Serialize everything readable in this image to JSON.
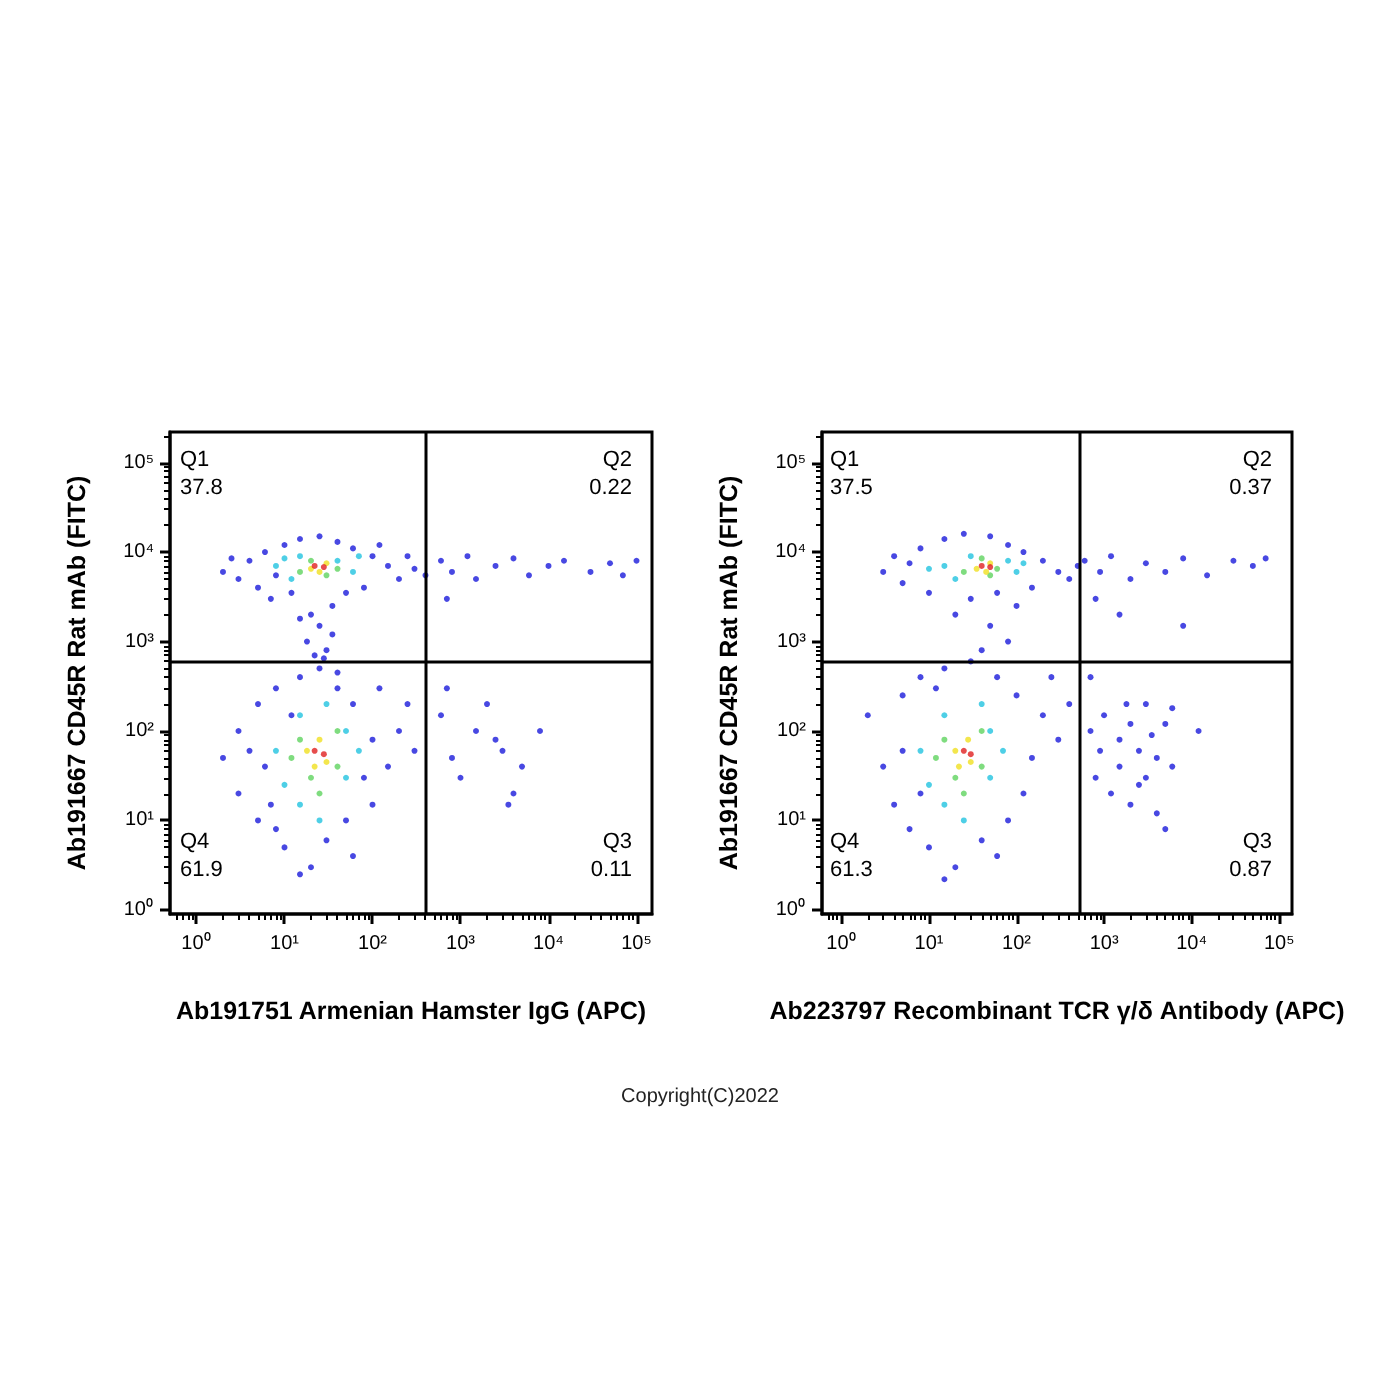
{
  "chart_data": [
    {
      "type": "scatter",
      "xlabel": "Ab191751 Armenian Hamster IgG (APC)",
      "ylabel": "Ab191667 CD45R Rat mAb (FITC)",
      "log": "xy",
      "marker": "circle",
      "xlim": [
        0.5,
        150000
      ],
      "ylim": [
        0.9,
        220000
      ],
      "xticks": [
        {
          "value": 1,
          "label": "10⁰"
        },
        {
          "value": 10,
          "label": "10¹"
        },
        {
          "value": 100,
          "label": "10²"
        },
        {
          "value": 1000,
          "label": "10³"
        },
        {
          "value": 10000,
          "label": "10⁴"
        },
        {
          "value": 100000,
          "label": "10⁵"
        }
      ],
      "yticks": [
        {
          "value": 1,
          "label": "10⁰"
        },
        {
          "value": 10,
          "label": "10¹"
        },
        {
          "value": 100,
          "label": "10²"
        },
        {
          "value": 1000,
          "label": "10³"
        },
        {
          "value": 10000,
          "label": "10⁴"
        },
        {
          "value": 100000,
          "label": "10⁵"
        }
      ],
      "ref_lines": [
        {
          "axis": "x",
          "value": 400,
          "color": "#000000"
        },
        {
          "axis": "y",
          "value": 600,
          "color": "#000000"
        }
      ],
      "annotations": [
        "Q1",
        "37.8",
        "Q2",
        "0.22",
        "Q4",
        "61.9",
        "Q3",
        "0.11"
      ],
      "series": [
        {
          "color": "#1a1adb",
          "x": [
            2,
            3,
            4,
            5,
            6,
            8,
            10,
            12,
            15,
            25,
            40,
            60,
            80,
            100,
            150,
            200,
            300,
            2.5,
            7,
            50,
            120,
            400,
            35,
            250,
            20,
            25,
            18,
            30,
            22,
            35,
            15,
            28,
            2,
            3,
            3,
            5,
            5,
            6,
            8,
            8,
            10,
            12,
            15,
            20,
            25,
            30,
            40,
            50,
            60,
            80,
            100,
            150,
            200,
            300,
            4,
            7,
            100,
            60,
            15,
            250,
            120,
            40,
            600,
            800,
            1200,
            1500,
            2500,
            4000,
            6000,
            10000,
            15000,
            30000,
            50000,
            70000,
            100000,
            700,
            600,
            800,
            1000,
            1500,
            2000,
            3000,
            4000,
            5000,
            3500,
            8000,
            700,
            2500
          ],
          "values": [
            6000,
            5000,
            8000,
            4000,
            10000,
            5500,
            12000,
            3500,
            14000,
            15000,
            13000,
            11000,
            4000,
            9000,
            7000,
            5000,
            6500,
            8500,
            3000,
            3500,
            12000,
            5500,
            2500,
            9000,
            2000,
            1500,
            1000,
            800,
            700,
            1200,
            1800,
            650,
            50,
            100,
            20,
            200,
            10,
            40,
            300,
            8,
            5,
            150,
            400,
            3,
            500,
            6,
            300,
            10,
            200,
            30,
            80,
            40,
            100,
            60,
            60,
            15,
            15,
            4,
            2.5,
            200,
            300,
            450,
            8000,
            6000,
            9000,
            5000,
            7000,
            8500,
            5500,
            7000,
            8000,
            6000,
            7500,
            5500,
            8000,
            3000,
            150,
            50,
            30,
            100,
            200,
            60,
            20,
            40,
            15,
            100,
            300,
            80
          ]
        },
        {
          "color": "#22c3e0",
          "x": [
            8,
            12,
            15,
            40,
            60,
            70,
            10,
            8,
            10,
            15,
            15,
            50,
            50,
            70,
            25,
            30
          ],
          "values": [
            7000,
            5000,
            9000,
            8000,
            6000,
            9000,
            8500,
            60,
            25,
            150,
            15,
            100,
            30,
            60,
            10,
            200
          ]
        },
        {
          "color": "#5fd35f",
          "x": [
            15,
            20,
            40,
            30,
            12,
            15,
            20,
            40,
            40,
            25
          ],
          "values": [
            6000,
            8000,
            6500,
            5500,
            50,
            80,
            30,
            40,
            100,
            20
          ]
        },
        {
          "color": "#f0e020",
          "x": [
            20,
            30,
            25,
            18,
            25,
            30,
            22
          ],
          "values": [
            6500,
            7500,
            6000,
            60,
            80,
            45,
            40
          ]
        },
        {
          "color": "#e02020",
          "x": [
            22,
            28,
            22,
            28
          ],
          "values": [
            7000,
            6800,
            60,
            55
          ]
        }
      ]
    },
    {
      "type": "scatter",
      "xlabel": "Ab223797 Recombinant TCR γ/δ Antibody (APC)",
      "ylabel": "Ab191667 CD45R Rat mAb (FITC)",
      "log": "xy",
      "marker": "circle",
      "xlim": [
        0.6,
        140000
      ],
      "ylim": [
        0.9,
        220000
      ],
      "xticks": [
        {
          "value": 1,
          "label": "10⁰"
        },
        {
          "value": 10,
          "label": "10¹"
        },
        {
          "value": 100,
          "label": "10²"
        },
        {
          "value": 1000,
          "label": "10³"
        },
        {
          "value": 10000,
          "label": "10⁴"
        },
        {
          "value": 100000,
          "label": "10⁵"
        }
      ],
      "yticks": [
        {
          "value": 1,
          "label": "10⁰"
        },
        {
          "value": 10,
          "label": "10¹"
        },
        {
          "value": 100,
          "label": "10²"
        },
        {
          "value": 1000,
          "label": "10³"
        },
        {
          "value": 10000,
          "label": "10⁴"
        },
        {
          "value": 100000,
          "label": "10⁵"
        }
      ],
      "ref_lines": [
        {
          "axis": "x",
          "value": 520,
          "color": "#000000"
        },
        {
          "axis": "y",
          "value": 600,
          "color": "#000000"
        }
      ],
      "annotations": [
        "Q1",
        "37.5",
        "Q2",
        "0.37",
        "Q4",
        "61.3",
        "Q3",
        "0.87",
        "Copyright(C)2022"
      ],
      "series": [
        {
          "color": "#1a1adb",
          "x": [
            3,
            4,
            5,
            8,
            10,
            15,
            25,
            50,
            80,
            120,
            200,
            300,
            400,
            150,
            60,
            6,
            500,
            30,
            20,
            50,
            100,
            80,
            40,
            2,
            3,
            4,
            5,
            6,
            8,
            10,
            15,
            20,
            30,
            40,
            60,
            80,
            100,
            150,
            200,
            300,
            400,
            5,
            8,
            120,
            60,
            250,
            15,
            12,
            600,
            900,
            1200,
            2000,
            3000,
            5000,
            8000,
            15000,
            30000,
            50000,
            70000,
            800,
            8000,
            1500,
            700,
            800,
            900,
            1000,
            1200,
            1500,
            1500,
            2000,
            2000,
            2500,
            3000,
            3000,
            3500,
            4000,
            4000,
            5000,
            6000,
            5000,
            2500,
            1800,
            12000,
            700,
            6000
          ],
          "values": [
            6000,
            9000,
            4500,
            11000,
            3500,
            14000,
            16000,
            15000,
            12000,
            10000,
            8000,
            6000,
            5000,
            4000,
            3500,
            7500,
            7000,
            3000,
            2000,
            1500,
            2500,
            1000,
            800,
            150,
            40,
            15,
            250,
            8,
            400,
            5,
            500,
            3,
            600,
            6,
            400,
            10,
            250,
            50,
            150,
            80,
            200,
            60,
            20,
            20,
            4,
            400,
            2.2,
            300,
            8000,
            6000,
            9000,
            5000,
            7500,
            6000,
            8500,
            5500,
            8000,
            7000,
            8500,
            3000,
            1500,
            2000,
            100,
            30,
            60,
            150,
            20,
            80,
            40,
            120,
            15,
            60,
            200,
            30,
            90,
            50,
            12,
            120,
            40,
            8,
            25,
            200,
            100,
            400,
            180
          ]
        },
        {
          "color": "#22c3e0",
          "x": [
            15,
            20,
            30,
            80,
            100,
            120,
            10,
            8,
            10,
            15,
            15,
            50,
            50,
            70,
            25,
            40
          ],
          "values": [
            7000,
            5000,
            9000,
            8000,
            6000,
            7500,
            6500,
            60,
            25,
            150,
            15,
            100,
            30,
            60,
            10,
            200
          ]
        },
        {
          "color": "#5fd35f",
          "x": [
            25,
            40,
            60,
            50,
            12,
            15,
            20,
            40,
            40,
            25
          ],
          "values": [
            6000,
            8500,
            6500,
            5500,
            50,
            80,
            30,
            40,
            100,
            20
          ]
        },
        {
          "color": "#f0e020",
          "x": [
            35,
            50,
            45,
            20,
            28,
            30,
            22
          ],
          "values": [
            6500,
            7500,
            6000,
            60,
            80,
            45,
            40
          ]
        },
        {
          "color": "#e02020",
          "x": [
            40,
            50,
            25,
            30
          ],
          "values": [
            7000,
            6800,
            60,
            55
          ]
        }
      ]
    }
  ]
}
